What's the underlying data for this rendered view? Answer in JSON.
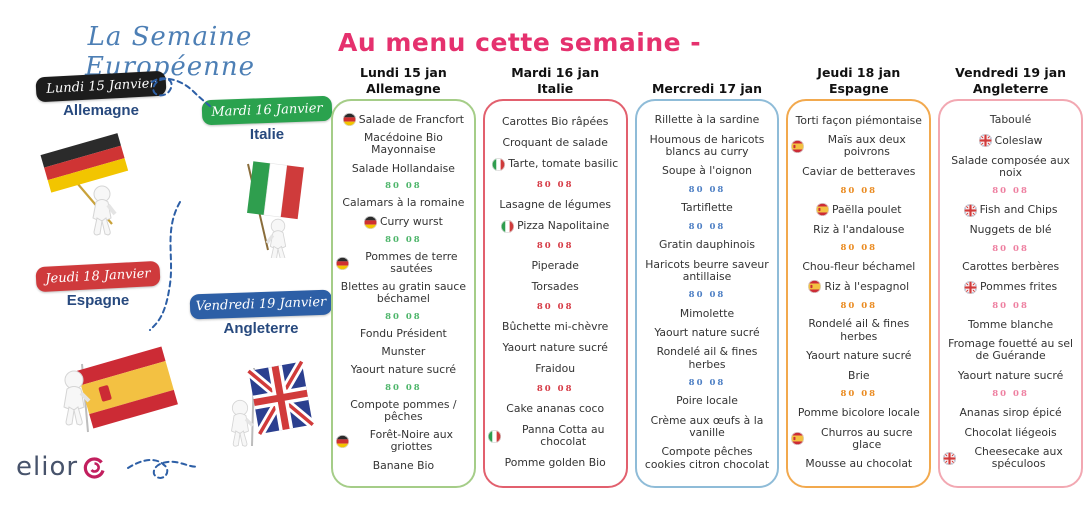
{
  "left_panel": {
    "title": "La Semaine Européenne",
    "title_color": "#4d7fb5",
    "day_banners": [
      {
        "day": "Lundi 15 Janvier",
        "country": "Allemagne",
        "banner_color": "#1c1c1c"
      },
      {
        "day": "Mardi 16 Janvier",
        "country": "Italie",
        "banner_color": "#2aa24e"
      },
      {
        "day": "Jeudi 18 Janvier",
        "country": "Espagne",
        "banner_color": "#cf3a3c"
      },
      {
        "day": "Vendredi 19 Janvier",
        "country": "Angleterre",
        "banner_color": "#2d5fa6"
      }
    ],
    "icons": [
      "germany-flag-figure",
      "italy-flag-figure",
      "spain-flag-figure",
      "uk-flag-figure",
      "elior-logo"
    ],
    "logo_text": "elior",
    "logo_accent_color": "#c21f5e"
  },
  "menu": {
    "title": "Au menu cette semaine -",
    "title_color": "#e5316e",
    "divider_glyph": "80 08",
    "columns": [
      {
        "day": "Lundi 15 jan",
        "country": "Allemagne",
        "border_color": "#a5cd88",
        "accent_color": "#4db56a",
        "items": [
          {
            "text": "Salade de Francfort",
            "flag": "de"
          },
          {
            "text": "Macédoine Bio Mayonnaise"
          },
          {
            "text": "Salade Hollandaise"
          },
          {
            "separator": true
          },
          {
            "text": "Calamars à la romaine"
          },
          {
            "text": "Curry wurst",
            "flag": "de"
          },
          {
            "separator": true
          },
          {
            "text": "Pommes de terre sautées",
            "flag": "de"
          },
          {
            "text": "Blettes au gratin sauce béchamel"
          },
          {
            "separator": true
          },
          {
            "text": "Fondu Président"
          },
          {
            "text": "Munster"
          },
          {
            "text": "Yaourt nature sucré"
          },
          {
            "separator": true
          },
          {
            "text": "Compote pommes / pêches"
          },
          {
            "text": "Forêt-Noire aux griottes",
            "flag": "de"
          },
          {
            "text": "Banane Bio"
          }
        ]
      },
      {
        "day": "Mardi 16 jan",
        "country": "Italie",
        "border_color": "#e2606e",
        "accent_color": "#d63a45",
        "items": [
          {
            "text": "Carottes Bio râpées"
          },
          {
            "text": "Croquant de salade"
          },
          {
            "text": "Tarte, tomate basilic",
            "flag": "it"
          },
          {
            "separator": true
          },
          {
            "text": "Lasagne de légumes"
          },
          {
            "text": "Pizza Napolitaine",
            "flag": "it"
          },
          {
            "separator": true
          },
          {
            "text": "Piperade"
          },
          {
            "text": "Torsades"
          },
          {
            "separator": true
          },
          {
            "text": "Bûchette mi-chèvre"
          },
          {
            "text": "Yaourt nature sucré"
          },
          {
            "text": "Fraidou"
          },
          {
            "separator": true
          },
          {
            "text": "Cake ananas coco"
          },
          {
            "text": "Panna Cotta au chocolat",
            "flag": "it"
          },
          {
            "text": "Pomme golden Bio"
          }
        ]
      },
      {
        "day": "Mercredi 17 jan",
        "country": "",
        "border_color": "#8fbcd8",
        "accent_color": "#4d7fc4",
        "items": [
          {
            "text": "Rillette à la sardine"
          },
          {
            "text": "Houmous de haricots blancs au curry"
          },
          {
            "text": "Soupe à l'oignon"
          },
          {
            "separator": true
          },
          {
            "text": "Tartiflette"
          },
          {
            "separator": true
          },
          {
            "text": "Gratin dauphinois"
          },
          {
            "text": "Haricots beurre saveur antillaise"
          },
          {
            "separator": true
          },
          {
            "text": "Mimolette"
          },
          {
            "text": "Yaourt nature sucré"
          },
          {
            "text": "Rondelé ail & fines herbes"
          },
          {
            "separator": true
          },
          {
            "text": "Poire locale"
          },
          {
            "text": "Crème aux œufs à la vanille"
          },
          {
            "text": "Compote pêches cookies citron chocolat"
          }
        ]
      },
      {
        "day": "Jeudi 18 jan",
        "country": "Espagne",
        "border_color": "#f2a94e",
        "accent_color": "#ea8a1f",
        "items": [
          {
            "text": "Torti façon piémontaise"
          },
          {
            "text": "Maïs aux deux poivrons",
            "flag": "es"
          },
          {
            "text": "Caviar de betteraves"
          },
          {
            "separator": true
          },
          {
            "text": "Paëlla poulet",
            "flag": "es"
          },
          {
            "text": "Riz à l'andalouse"
          },
          {
            "separator": true
          },
          {
            "text": "Chou-fleur béchamel"
          },
          {
            "text": "Riz à l'espagnol",
            "flag": "es"
          },
          {
            "separator": true
          },
          {
            "text": "Rondelé ail & fines herbes"
          },
          {
            "text": "Yaourt nature sucré"
          },
          {
            "text": "Brie"
          },
          {
            "separator": true
          },
          {
            "text": "Pomme bicolore locale"
          },
          {
            "text": "Churros au sucre glace",
            "flag": "es"
          },
          {
            "text": "Mousse au chocolat"
          }
        ]
      },
      {
        "day": "Vendredi 19 jan",
        "country": "Angleterre",
        "border_color": "#f2a8b2",
        "accent_color": "#ee7fa0",
        "items": [
          {
            "text": "Taboulé"
          },
          {
            "text": "Coleslaw",
            "flag": "uk"
          },
          {
            "text": "Salade composée aux noix"
          },
          {
            "separator": true
          },
          {
            "text": "Fish and Chips",
            "flag": "uk"
          },
          {
            "text": "Nuggets de blé"
          },
          {
            "separator": true
          },
          {
            "text": "Carottes berbères"
          },
          {
            "text": "Pommes frites",
            "flag": "uk"
          },
          {
            "separator": true
          },
          {
            "text": "Tomme blanche"
          },
          {
            "text": "Fromage fouetté au sel de Guérande"
          },
          {
            "text": "Yaourt nature sucré"
          },
          {
            "separator": true
          },
          {
            "text": "Ananas sirop épicé"
          },
          {
            "text": "Chocolat liégeois"
          },
          {
            "text": "Cheesecake aux spéculoos",
            "flag": "uk"
          }
        ]
      }
    ]
  }
}
